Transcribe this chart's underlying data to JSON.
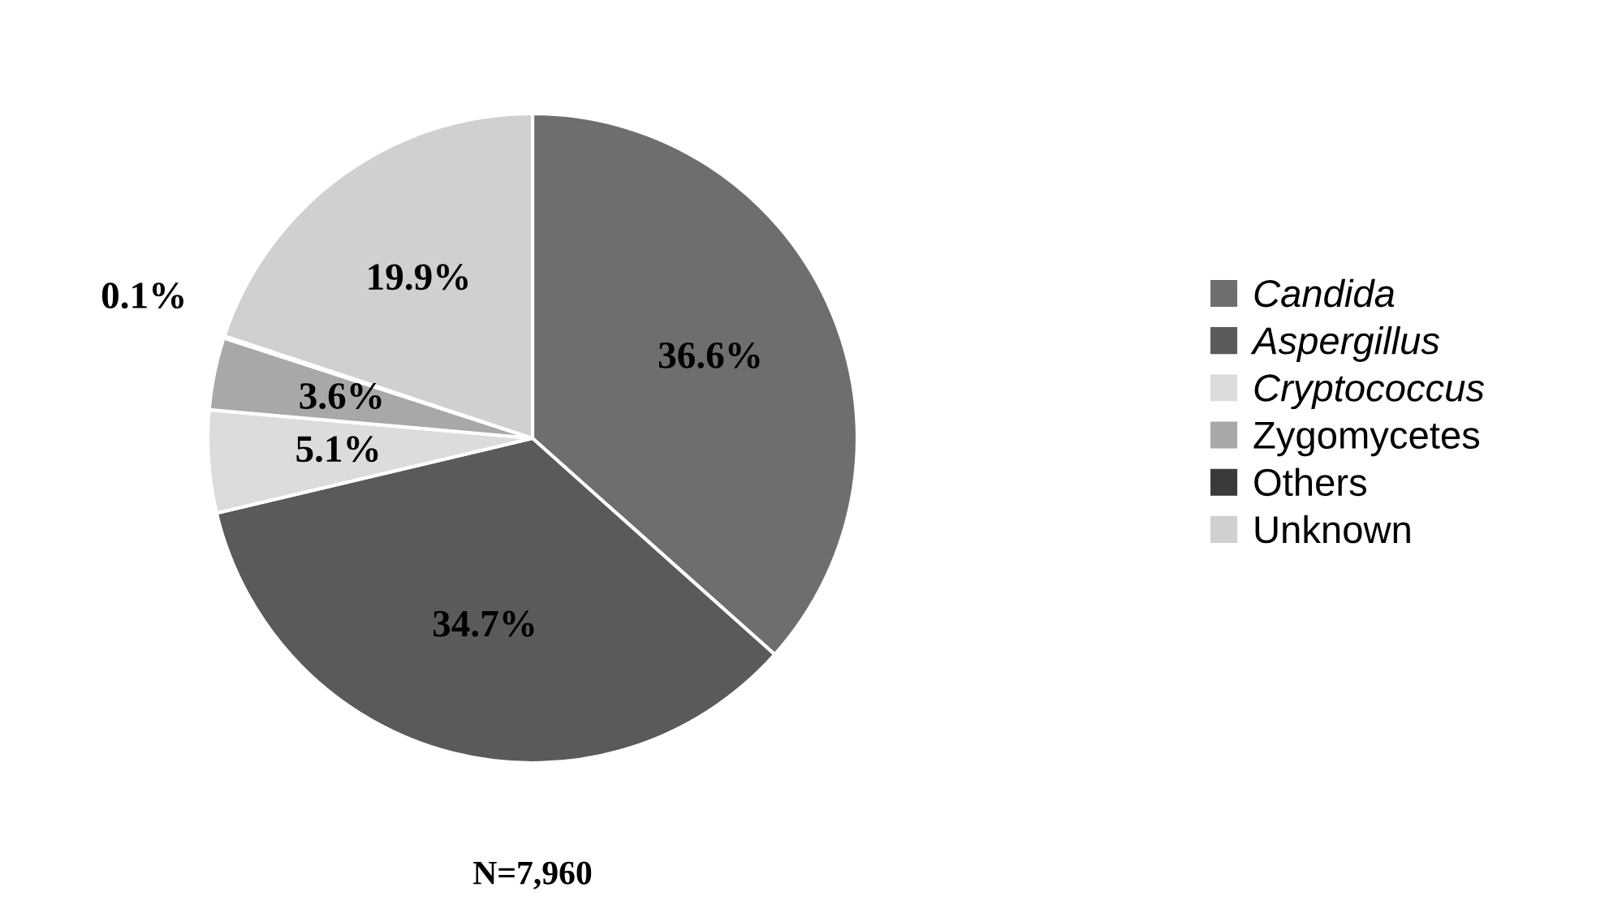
{
  "chart_data": {
    "type": "pie",
    "categories": [
      "Candida",
      "Aspergillus",
      "Cryptococcus",
      "Zygomycetes",
      "Others",
      "Unknown"
    ],
    "values": [
      36.6,
      34.7,
      5.1,
      3.6,
      0.1,
      19.9
    ],
    "value_labels": [
      "36.6%",
      "34.7%",
      "5.1%",
      "3.6%",
      "0.1%",
      "19.9%"
    ],
    "colors": [
      "#6e6e6e",
      "#5a5a5a",
      "#dcdcdc",
      "#a8a8a8",
      "#3a3a3a",
      "#d0d0d0"
    ],
    "legend": "right",
    "annotations": [
      "N=7,960"
    ]
  }
}
